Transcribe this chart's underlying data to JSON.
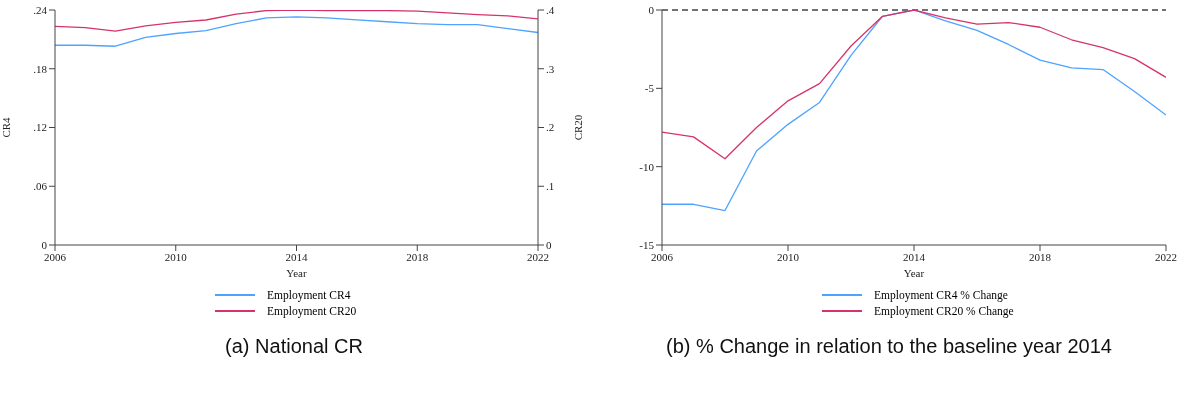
{
  "chart_data": [
    {
      "type": "line",
      "title": "(a) National CR",
      "xlabel": "Year",
      "ylabel": "CR4",
      "y2label": "CR20",
      "x": [
        2006,
        2007,
        2008,
        2009,
        2010,
        2011,
        2012,
        2013,
        2014,
        2015,
        2016,
        2017,
        2018,
        2019,
        2020,
        2021,
        2022
      ],
      "series": [
        {
          "name": "Employment CR4",
          "color": "#4da3ff",
          "values": [
            0.204,
            0.204,
            0.203,
            0.212,
            0.216,
            0.219,
            0.226,
            0.232,
            0.233,
            0.232,
            0.23,
            0.228,
            0.226,
            0.225,
            0.225,
            0.221,
            0.217
          ]
        },
        {
          "name": "Employment CR20",
          "color": "#d6336c",
          "axis": "y2",
          "values": [
            0.372,
            0.37,
            0.364,
            0.373,
            0.379,
            0.383,
            0.393,
            0.399,
            0.4,
            0.399,
            0.399,
            0.399,
            0.398,
            0.395,
            0.392,
            0.39,
            0.385
          ]
        }
      ],
      "xlim": [
        2006,
        2022
      ],
      "xticks": [
        2006,
        2010,
        2014,
        2018,
        2022
      ],
      "ylim": [
        0,
        0.24
      ],
      "yticks": [
        0,
        {
          "value": 0.06,
          "label": ".06"
        },
        {
          "value": 0.12,
          "label": ".12"
        },
        {
          "value": 0.18,
          "label": ".18"
        },
        {
          "value": 0.24,
          "label": ".24"
        }
      ],
      "y2lim": [
        0,
        0.4
      ],
      "y2ticks": [
        0,
        {
          "value": 0.1,
          "label": ".1"
        },
        {
          "value": 0.2,
          "label": ".2"
        },
        {
          "value": 0.3,
          "label": ".3"
        },
        {
          "value": 0.4,
          "label": ".4"
        }
      ],
      "grid": false,
      "legend": "bottom",
      "marker": "none",
      "line_style": "solid"
    },
    {
      "type": "line",
      "title": "(b) % Change in relation to the baseline year 2014",
      "xlabel": "Year",
      "x": [
        2006,
        2007,
        2008,
        2009,
        2010,
        2011,
        2012,
        2013,
        2014,
        2015,
        2016,
        2017,
        2018,
        2019,
        2020,
        2021,
        2022
      ],
      "series": [
        {
          "name": "Employment CR4 % Change",
          "color": "#4da3ff",
          "values": [
            -12.4,
            -12.4,
            -12.8,
            -9.0,
            -7.3,
            -5.9,
            -2.9,
            -0.4,
            0,
            -0.7,
            -1.3,
            -2.2,
            -3.2,
            -3.7,
            -3.8,
            -5.2,
            -6.7
          ]
        },
        {
          "name": "Employment CR20 % Change",
          "color": "#d6336c",
          "values": [
            -7.8,
            -8.1,
            -9.5,
            -7.5,
            -5.8,
            -4.7,
            -2.3,
            -0.4,
            0,
            -0.5,
            -0.9,
            -0.8,
            -1.1,
            -1.9,
            -2.4,
            -3.1,
            -4.3
          ]
        }
      ],
      "xlim": [
        2006,
        2022
      ],
      "xticks": [
        2006,
        2010,
        2014,
        2018,
        2022
      ],
      "ylim": [
        -15,
        0
      ],
      "yticks": [
        -15,
        -10,
        -5,
        0
      ],
      "ref_lines": [
        {
          "axis": "y",
          "value": 0,
          "color": "#444444",
          "line_style": "dashed"
        }
      ],
      "grid": false,
      "legend": "bottom",
      "marker": "none",
      "line_style": "solid"
    }
  ]
}
